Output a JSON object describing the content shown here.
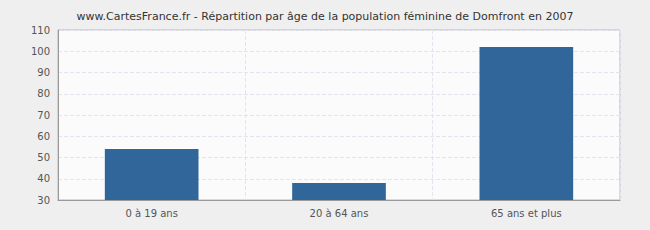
{
  "chart_data": {
    "type": "bar",
    "title": "www.CartesFrance.fr - Répartition par âge de la population féminine de Domfront en 2007",
    "categories": [
      "0 à 19 ans",
      "20 à 64 ans",
      "65 ans et plus"
    ],
    "values": [
      54,
      38,
      102
    ],
    "color": "#31669a",
    "ylim": [
      30,
      110
    ],
    "yticks": [
      30,
      40,
      50,
      60,
      70,
      80,
      90,
      100,
      110
    ],
    "grid": true
  }
}
